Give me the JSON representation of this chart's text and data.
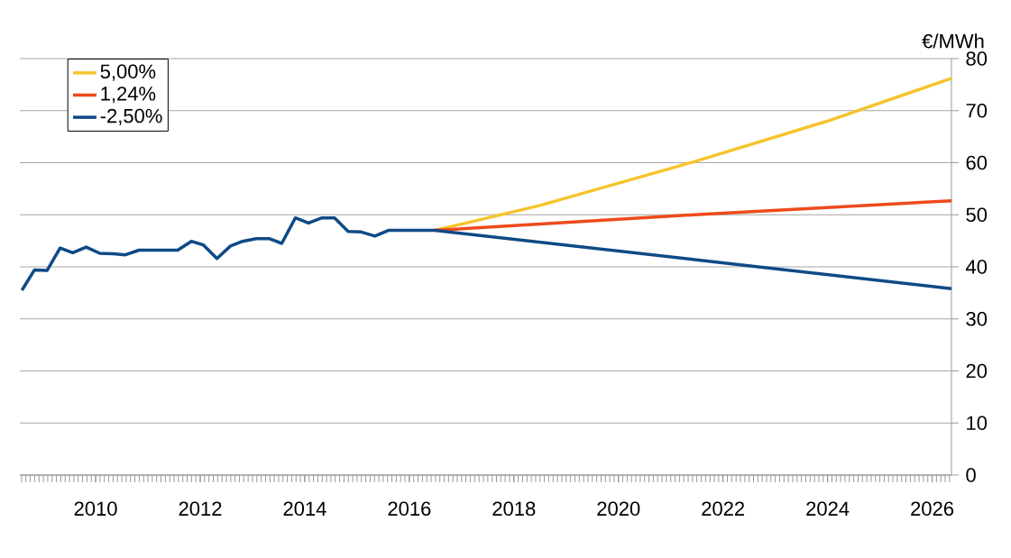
{
  "chart_data": {
    "type": "line",
    "ylabel": "€/MWh",
    "xlim": [
      2008.55,
      2026.37
    ],
    "xticks": [
      2010,
      2012,
      2014,
      2016,
      2018,
      2020,
      2022,
      2024,
      2026
    ],
    "ylim": [
      0,
      80
    ],
    "yticks": [
      0,
      10,
      20,
      30,
      40,
      50,
      60,
      70,
      80
    ],
    "grid": "y",
    "legend": "top left",
    "marker": "none",
    "line_style": "solid",
    "series": [
      {
        "name": "5,00%",
        "color": "#f5c42c",
        "x": [
          2016.49,
          2018.5,
          2021.45,
          2024.0,
          2026.37
        ],
        "values": [
          47.0,
          51.8,
          60.2,
          68.0,
          76.2
        ]
      },
      {
        "name": "1,24%",
        "color": "#ee4a1c",
        "x": [
          2016.49,
          2021.45,
          2026.37
        ],
        "values": [
          47.0,
          50.0,
          52.7
        ]
      },
      {
        "name": "-2,50%",
        "color": "#0f4a86",
        "x": [
          2008.59,
          2008.83,
          2009.07,
          2009.32,
          2009.56,
          2009.82,
          2010.08,
          2010.34,
          2010.57,
          2010.83,
          2011.09,
          2011.57,
          2011.83,
          2012.06,
          2012.32,
          2012.58,
          2012.81,
          2013.07,
          2013.33,
          2013.56,
          2013.82,
          2014.07,
          2014.33,
          2014.57,
          2014.83,
          2015.08,
          2015.34,
          2015.6,
          2016.49,
          2021.45,
          2026.37
        ],
        "values": [
          35.5,
          39.4,
          39.3,
          43.6,
          42.7,
          43.8,
          42.6,
          42.5,
          42.3,
          43.2,
          43.2,
          43.2,
          44.9,
          44.2,
          41.6,
          44.0,
          44.9,
          45.4,
          45.4,
          44.5,
          49.4,
          48.4,
          49.4,
          49.4,
          46.8,
          46.7,
          45.9,
          47.0,
          47.0,
          41.4,
          35.8
        ]
      }
    ]
  }
}
